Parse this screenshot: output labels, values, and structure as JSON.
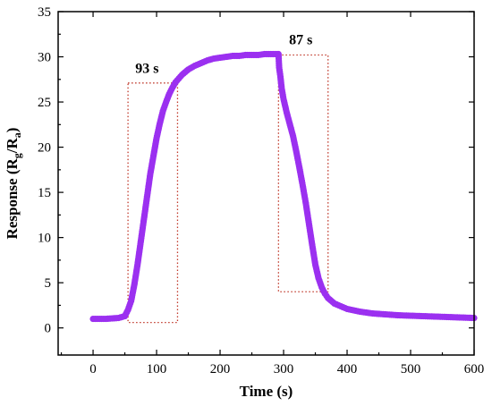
{
  "chart_data": {
    "type": "scatter",
    "title": "",
    "xlabel": "Time (s)",
    "ylabel_parts": {
      "prefix": "Response (R",
      "sub1": "g",
      "mid": "/R",
      "sub2": "a",
      "suffix": ")"
    },
    "xlim": [
      -55,
      600
    ],
    "ylim": [
      -3,
      35
    ],
    "xticks": [
      0,
      100,
      200,
      300,
      400,
      500,
      600
    ],
    "yticks": [
      0,
      5,
      10,
      15,
      20,
      25,
      30,
      35
    ],
    "grid": false,
    "legend": "none",
    "marker_color": "#9b30f0",
    "box_color": "#c0392b",
    "series": [
      {
        "x": [
          0,
          20,
          40,
          50,
          55,
          60,
          65,
          70,
          75,
          80,
          85,
          90,
          95,
          100,
          105,
          110,
          115,
          120,
          125,
          130,
          140,
          150,
          160,
          170,
          180,
          190,
          200,
          210,
          220,
          230,
          240,
          250,
          260,
          270,
          280,
          290,
          292,
          293,
          295,
          297,
          300,
          305,
          310,
          315,
          320,
          325,
          330,
          335,
          340,
          345,
          350,
          355,
          360,
          365,
          370,
          375,
          380,
          390,
          400,
          420,
          440,
          460,
          480,
          500,
          520,
          540,
          560,
          580,
          600
        ],
        "y": [
          1.0,
          1.0,
          1.1,
          1.3,
          2.0,
          3.0,
          4.8,
          7.0,
          9.5,
          12.0,
          14.5,
          17.0,
          19.0,
          21.0,
          22.6,
          24.0,
          25.0,
          25.9,
          26.6,
          27.2,
          28.0,
          28.6,
          29.0,
          29.3,
          29.6,
          29.8,
          29.9,
          30.0,
          30.1,
          30.1,
          30.2,
          30.2,
          30.2,
          30.3,
          30.3,
          30.3,
          30.3,
          28.8,
          27.8,
          26.5,
          25.3,
          23.8,
          22.5,
          21.2,
          19.5,
          17.7,
          15.8,
          13.8,
          11.5,
          9.2,
          7.0,
          5.5,
          4.5,
          3.8,
          3.3,
          3.0,
          2.7,
          2.4,
          2.1,
          1.8,
          1.6,
          1.5,
          1.4,
          1.35,
          1.3,
          1.25,
          1.2,
          1.15,
          1.1
        ]
      }
    ],
    "annotations": [
      {
        "label": "93 s",
        "x0": 55,
        "x1": 133,
        "y0": 0.6,
        "y1": 27.1,
        "label_x": 85,
        "label_y": 28.2
      },
      {
        "label": "87 s",
        "x0": 292,
        "x1": 370,
        "y0": 4.0,
        "y1": 30.2,
        "label_x": 327,
        "label_y": 31.4
      }
    ]
  }
}
